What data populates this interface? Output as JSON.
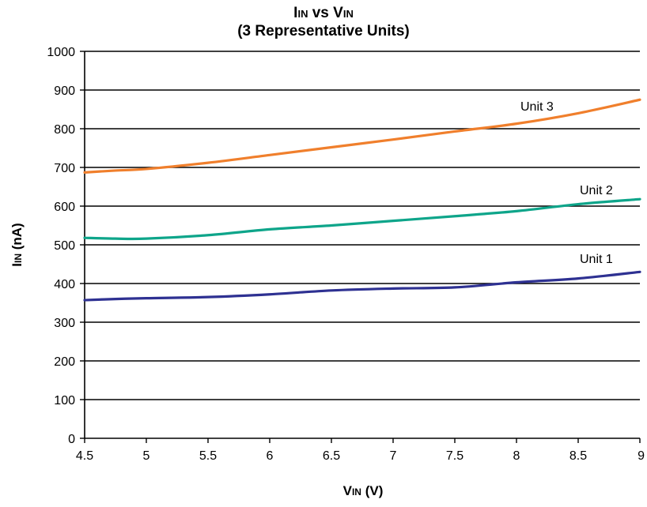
{
  "chart_data": {
    "type": "line",
    "title": {
      "main": "I",
      "sub": "IN",
      "mid": " vs V",
      "sub2": "IN"
    },
    "subtitle": "(3 Representative Units)",
    "xlabel": {
      "main": "V",
      "sub": "IN",
      "rest": " (V)"
    },
    "ylabel": {
      "main": "I",
      "sub": "IN",
      "rest": "  (nA)"
    },
    "xlim": [
      4.5,
      9
    ],
    "ylim": [
      0,
      1000
    ],
    "xticks": [
      "4.5",
      "5",
      "5.5",
      "6",
      "6.5",
      "7",
      "7.5",
      "8",
      "8.5",
      "9"
    ],
    "yticks": [
      "0",
      "100",
      "200",
      "300",
      "400",
      "500",
      "600",
      "700",
      "800",
      "900",
      "1000"
    ],
    "grid": "horizontal",
    "series": [
      {
        "name": "Unit 1",
        "color": "#2e3192",
        "x": [
          4.5,
          4.75,
          5,
          5.5,
          6,
          6.5,
          7,
          7.5,
          8,
          8.5,
          9
        ],
        "y": [
          357,
          360,
          362,
          365,
          372,
          382,
          387,
          390,
          403,
          413,
          430
        ]
      },
      {
        "name": "Unit 2",
        "color": "#0ea58a",
        "x": [
          4.5,
          4.75,
          5,
          5.5,
          6,
          6.5,
          7,
          7.5,
          8,
          8.5,
          9
        ],
        "y": [
          518,
          516,
          516,
          525,
          540,
          550,
          562,
          574,
          587,
          605,
          618
        ]
      },
      {
        "name": "Unit 3",
        "color": "#f07f2c",
        "x": [
          4.5,
          4.75,
          5,
          5.5,
          6,
          6.5,
          7,
          7.5,
          8,
          8.5,
          9
        ],
        "y": [
          687,
          692,
          696,
          712,
          732,
          752,
          772,
          793,
          813,
          840,
          875
        ]
      }
    ],
    "annotations": [
      {
        "text": "Unit 3",
        "series": "Unit 3"
      },
      {
        "text": "Unit 2",
        "series": "Unit 2"
      },
      {
        "text": "Unit 1",
        "series": "Unit 1"
      }
    ]
  }
}
